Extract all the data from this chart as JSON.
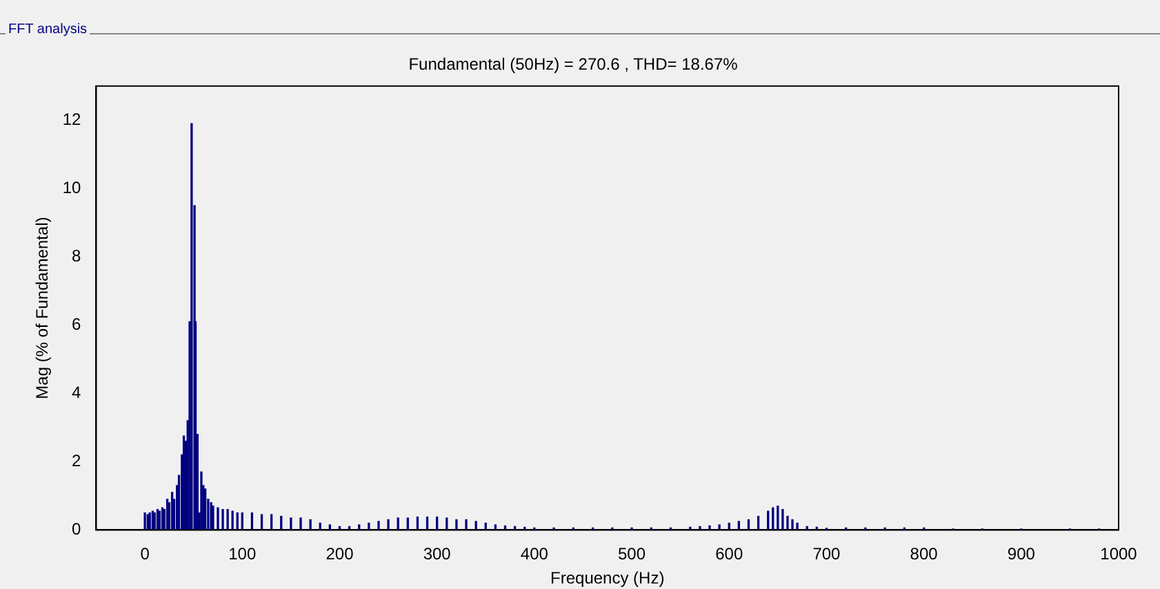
{
  "chart_data": {
    "type": "bar",
    "title": "Fundamental (50Hz) = 270.6 , THD= 18.67%",
    "xlabel": "Frequency (Hz)",
    "ylabel": "Mag (% of Fundamental)",
    "annotations": [
      "FFT analysis"
    ],
    "x": [
      0,
      3,
      5,
      8,
      10,
      13,
      15,
      18,
      20,
      23,
      25,
      28,
      30,
      33,
      35,
      38,
      40,
      42,
      44,
      46,
      48,
      50,
      51,
      52,
      54,
      56,
      58,
      60,
      62,
      65,
      68,
      70,
      75,
      80,
      85,
      90,
      95,
      100,
      110,
      120,
      130,
      140,
      150,
      160,
      170,
      180,
      190,
      200,
      210,
      220,
      230,
      240,
      250,
      260,
      270,
      280,
      290,
      300,
      310,
      320,
      330,
      340,
      350,
      360,
      370,
      380,
      390,
      400,
      420,
      440,
      460,
      480,
      500,
      520,
      540,
      560,
      570,
      580,
      590,
      600,
      610,
      620,
      630,
      640,
      645,
      650,
      655,
      660,
      665,
      670,
      680,
      690,
      700,
      720,
      740,
      760,
      780,
      800,
      830,
      860,
      900,
      950,
      980
    ],
    "values": [
      0.5,
      0.45,
      0.5,
      0.55,
      0.5,
      0.6,
      0.55,
      0.65,
      0.6,
      0.9,
      0.8,
      1.1,
      0.9,
      1.3,
      1.6,
      2.2,
      2.75,
      2.6,
      3.2,
      6.1,
      11.9,
      null,
      9.5,
      6.1,
      2.8,
      0.5,
      1.7,
      1.3,
      1.2,
      0.9,
      0.8,
      0.7,
      0.65,
      0.6,
      0.6,
      0.55,
      0.5,
      0.5,
      0.5,
      0.45,
      0.45,
      0.4,
      0.35,
      0.35,
      0.3,
      0.2,
      0.15,
      0.1,
      0.1,
      0.15,
      0.2,
      0.25,
      0.3,
      0.35,
      0.35,
      0.38,
      0.38,
      0.38,
      0.35,
      0.3,
      0.3,
      0.25,
      0.2,
      0.15,
      0.12,
      0.1,
      0.08,
      0.06,
      0.06,
      0.06,
      0.06,
      0.06,
      0.06,
      0.06,
      0.06,
      0.08,
      0.1,
      0.12,
      0.15,
      0.2,
      0.25,
      0.3,
      0.4,
      0.55,
      0.65,
      0.7,
      0.6,
      0.4,
      0.3,
      0.2,
      0.1,
      0.08,
      0.05,
      0.06,
      0.06,
      0.06,
      0.06,
      0.06,
      0.03,
      0.03,
      0.03,
      0.03,
      0.03
    ],
    "color": "#000080",
    "xlim": [
      -50,
      1000
    ],
    "xticks": [
      0,
      100,
      200,
      300,
      400,
      500,
      600,
      700,
      800,
      900,
      1000
    ],
    "ylim": [
      0,
      13
    ],
    "yticks": [
      0,
      2,
      4,
      6,
      8,
      10,
      12
    ],
    "grid": false,
    "legend": false
  }
}
